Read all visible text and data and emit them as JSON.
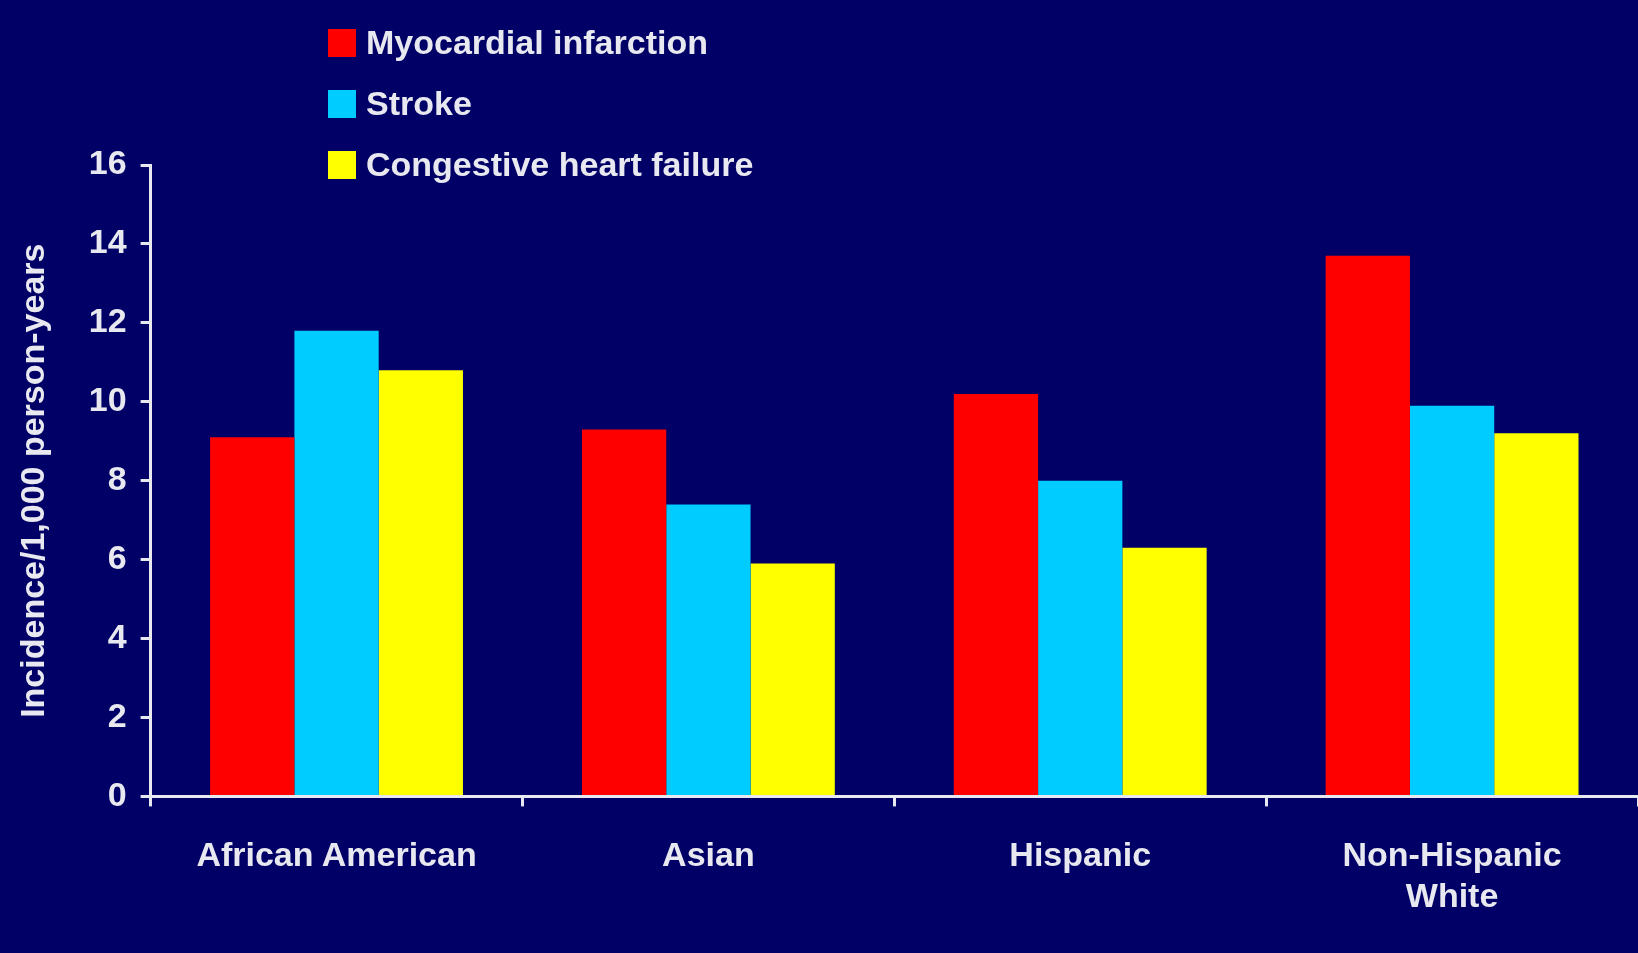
{
  "chart_data": {
    "type": "bar",
    "ylabel": "Incidence/1,000 person-years",
    "categories": [
      "African American",
      "Asian",
      "Hispanic",
      "Non-Hispanic White"
    ],
    "series": [
      {
        "name": "Myocardial infarction",
        "color": "#ff0000",
        "values": [
          9.1,
          9.3,
          10.2,
          13.7
        ]
      },
      {
        "name": "Stroke",
        "color": "#00ccff",
        "values": [
          11.8,
          7.4,
          8.0,
          9.9
        ]
      },
      {
        "name": "Congestive heart failure",
        "color": "#ffff00",
        "values": [
          10.8,
          5.9,
          6.3,
          9.2
        ]
      }
    ],
    "ylim": [
      0,
      16
    ],
    "yticks": [
      0,
      2,
      4,
      6,
      8,
      10,
      12,
      14,
      16
    ],
    "grid": false,
    "legend": "top"
  }
}
